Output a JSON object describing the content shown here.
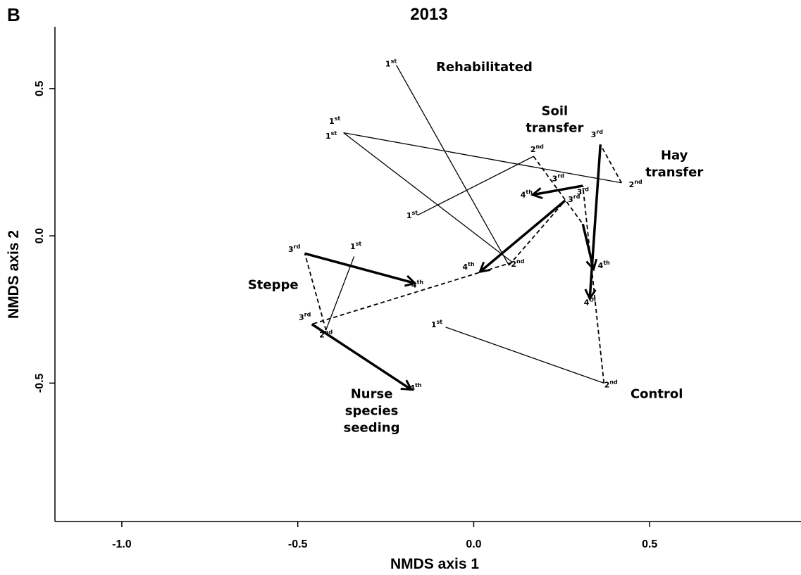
{
  "panel_letter": "B",
  "chart_data": {
    "type": "scatter",
    "title": "2013",
    "xlabel": "NMDS axis 1",
    "ylabel": "NMDS axis 2",
    "xlim": [
      -1.19,
      0.93
    ],
    "ylim": [
      -0.97,
      0.71
    ],
    "xticks": [
      {
        "value": -1.0,
        "label": "-1.0"
      },
      {
        "value": -0.5,
        "label": "-0.5"
      },
      {
        "value": 0.0,
        "label": "0.0"
      },
      {
        "value": 0.5,
        "label": "0.5"
      }
    ],
    "yticks": [
      {
        "value": 0.5,
        "label": "0.5"
      },
      {
        "value": 0.0,
        "label": "0.0"
      },
      {
        "value": -0.5,
        "label": "-0.5"
      }
    ],
    "grid": false,
    "legend": "none",
    "segment_styles": {
      "1st-2nd": "thin solid line",
      "2nd-3rd": "dashed line",
      "3rd-4th": "thick arrow"
    },
    "series": [
      {
        "name": "Rehabilitated",
        "points": [
          {
            "label": "1st",
            "x": -0.22,
            "y": 0.58
          },
          {
            "label": "2nd",
            "x": 0.1,
            "y": -0.1
          },
          {
            "label": "3rd",
            "x": 0.26,
            "y": 0.12
          },
          {
            "label": "4th",
            "x": 0.02,
            "y": -0.12
          }
        ]
      },
      {
        "name": "Soil transfer",
        "points": [
          {
            "label": "1st",
            "x": -0.16,
            "y": 0.07
          },
          {
            "label": "2nd",
            "x": 0.17,
            "y": 0.27
          },
          {
            "label": "3rd",
            "x": 0.31,
            "y": 0.04
          },
          {
            "label": "4th",
            "x": 0.34,
            "y": -0.11
          }
        ]
      },
      {
        "name": "Hay transfer",
        "points": [
          {
            "label": "1st",
            "x": -0.37,
            "y": 0.35
          },
          {
            "label": "2nd",
            "x": 0.42,
            "y": 0.18
          },
          {
            "label": "3rd",
            "x": 0.36,
            "y": 0.31
          },
          {
            "label": "4th",
            "x": 0.33,
            "y": -0.21
          }
        ]
      },
      {
        "name": "Steppe",
        "points": [
          {
            "label": "1st",
            "x": -0.34,
            "y": -0.07
          },
          {
            "label": "2nd",
            "x": -0.42,
            "y": -0.32
          },
          {
            "label": "3rd",
            "x": -0.48,
            "y": -0.06
          },
          {
            "label": "4th",
            "x": -0.17,
            "y": -0.16
          }
        ]
      },
      {
        "name": "Nurse species seeding",
        "points": [
          {
            "label": "1st",
            "x": -0.37,
            "y": 0.35
          },
          {
            "label": "2nd",
            "x": 0.11,
            "y": -0.09
          },
          {
            "label": "3rd",
            "x": -0.46,
            "y": -0.3
          },
          {
            "label": "4th",
            "x": -0.18,
            "y": -0.52
          }
        ]
      },
      {
        "name": "Control",
        "points": [
          {
            "label": "1st",
            "x": -0.08,
            "y": -0.31
          },
          {
            "label": "2nd",
            "x": 0.37,
            "y": -0.5
          },
          {
            "label": "3rd",
            "x": 0.31,
            "y": 0.17
          },
          {
            "label": "4th",
            "x": 0.17,
            "y": 0.14
          }
        ]
      }
    ],
    "point_labels": [
      {
        "series": "Rehabilitated",
        "num": "1",
        "suffix": "st",
        "x": -0.235,
        "y": 0.575
      },
      {
        "series": "Rehabilitated",
        "num": "2",
        "suffix": "nd",
        "x": 0.125,
        "y": -0.105
      },
      {
        "series": "Rehabilitated",
        "num": "3",
        "suffix": "rd",
        "x": 0.285,
        "y": 0.115
      },
      {
        "series": "Rehabilitated",
        "num": "4",
        "suffix": "th",
        "x": -0.015,
        "y": -0.115
      },
      {
        "series": "Soil transfer",
        "num": "1",
        "suffix": "st",
        "x": -0.175,
        "y": 0.06
      },
      {
        "series": "Soil transfer",
        "num": "2",
        "suffix": "nd",
        "x": 0.18,
        "y": 0.285
      },
      {
        "series": "Soil transfer",
        "num": "3",
        "suffix": "rd",
        "x": 0.31,
        "y": 0.14
      },
      {
        "series": "Soil transfer",
        "num": "4",
        "suffix": "th",
        "x": 0.37,
        "y": -0.11
      },
      {
        "series": "Hay transfer",
        "num": "1",
        "suffix": "st",
        "x": -0.395,
        "y": 0.38
      },
      {
        "series": "Hay transfer",
        "num": "1",
        "suffix": "st",
        "x": -0.405,
        "y": 0.33
      },
      {
        "series": "Hay transfer",
        "num": "2",
        "suffix": "nd",
        "x": 0.46,
        "y": 0.165
      },
      {
        "series": "Hay transfer",
        "num": "3",
        "suffix": "rd",
        "x": 0.35,
        "y": 0.335
      },
      {
        "series": "Hay transfer",
        "num": "4",
        "suffix": "th",
        "x": 0.33,
        "y": -0.235
      },
      {
        "series": "Steppe",
        "num": "1",
        "suffix": "st",
        "x": -0.335,
        "y": -0.045
      },
      {
        "series": "Steppe",
        "num": "2",
        "suffix": "nd",
        "x": -0.42,
        "y": -0.345
      },
      {
        "series": "Steppe",
        "num": "3",
        "suffix": "rd",
        "x": -0.51,
        "y": -0.055
      },
      {
        "series": "Steppe",
        "num": "4",
        "suffix": "th",
        "x": -0.16,
        "y": -0.175
      },
      {
        "series": "Nurse species seeding",
        "num": "3",
        "suffix": "rd",
        "x": -0.48,
        "y": -0.285
      },
      {
        "series": "Nurse species seeding",
        "num": "4",
        "suffix": "th",
        "x": -0.165,
        "y": -0.525
      },
      {
        "series": "Control",
        "num": "1",
        "suffix": "st",
        "x": -0.105,
        "y": -0.31
      },
      {
        "series": "Control",
        "num": "2",
        "suffix": "nd",
        "x": 0.39,
        "y": -0.515
      },
      {
        "series": "Control",
        "num": "3",
        "suffix": "rd",
        "x": 0.24,
        "y": 0.185
      },
      {
        "series": "Control",
        "num": "4",
        "suffix": "th",
        "x": 0.15,
        "y": 0.13
      }
    ],
    "group_labels": [
      {
        "lines": [
          "Rehabilitated"
        ],
        "x": 0.03,
        "y": 0.56
      },
      {
        "lines": [
          "Soil",
          "transfer"
        ],
        "x": 0.23,
        "y": 0.41
      },
      {
        "lines": [
          "Hay",
          "transfer"
        ],
        "x": 0.57,
        "y": 0.26
      },
      {
        "lines": [
          "Steppe"
        ],
        "x": -0.57,
        "y": -0.18
      },
      {
        "lines": [
          "Nurse",
          "species",
          "seeding"
        ],
        "x": -0.29,
        "y": -0.55
      },
      {
        "lines": [
          "Control"
        ],
        "x": 0.52,
        "y": -0.55
      }
    ]
  }
}
